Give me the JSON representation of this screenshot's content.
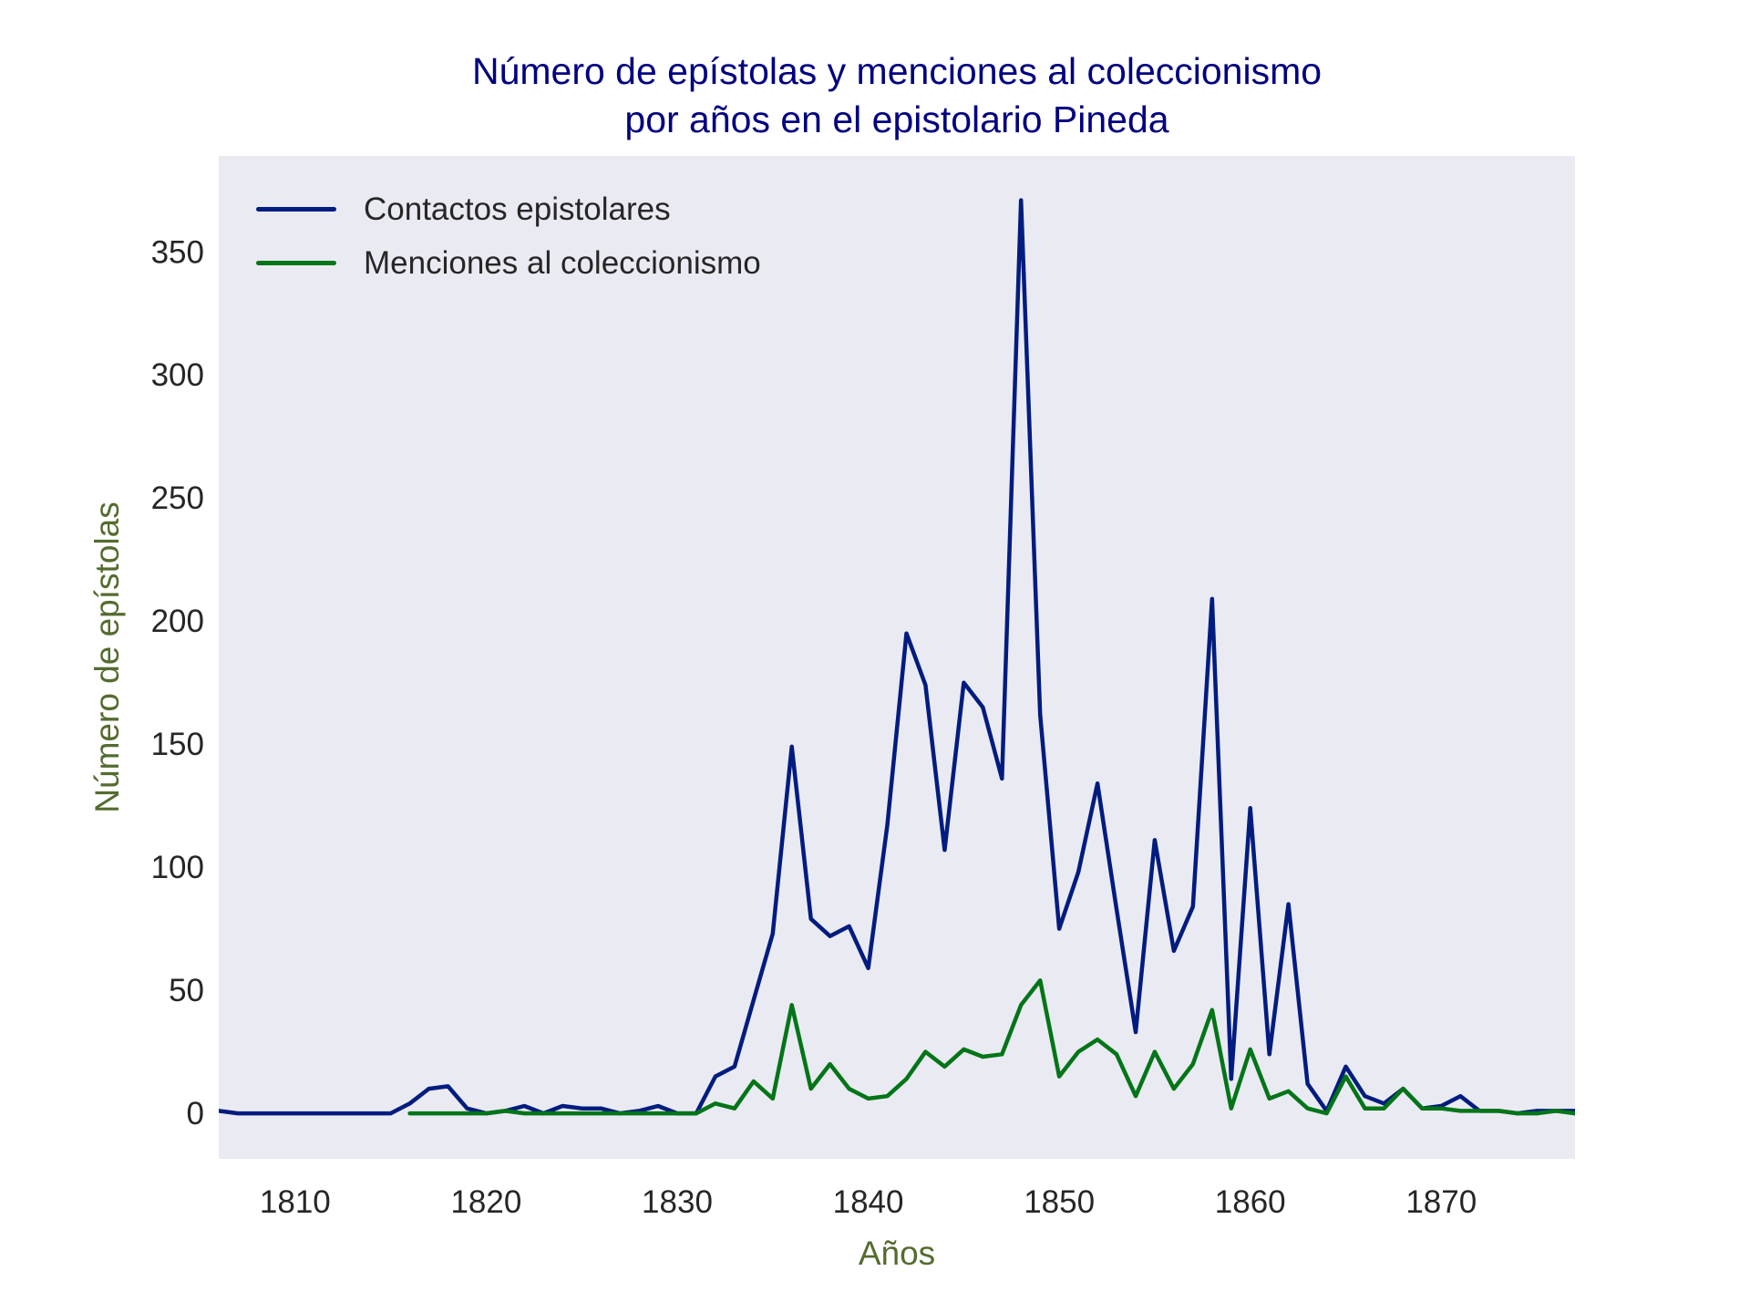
{
  "title": {
    "line1": "Número de epístolas y menciones al coleccionismo",
    "line2": "por años en el epistolario Pineda",
    "color": "#000080"
  },
  "axes": {
    "xlabel": "Años",
    "ylabel": "Número de epístolas",
    "label_color": "#556b2f",
    "background": "#eaeaf2",
    "tick_color": "#262626"
  },
  "legend": {
    "items": [
      {
        "label": "Contactos epistolares",
        "color": "#001c7f"
      },
      {
        "label": "Menciones al coleccionismo",
        "color": "#017517"
      }
    ]
  },
  "chart_data": {
    "type": "line",
    "title": "Número de epístolas y menciones al coleccionismo por años en el epistolario Pineda",
    "xlabel": "Años",
    "ylabel": "Número de epístolas",
    "xlim": [
      1806,
      1877
    ],
    "ylim": [
      -18.5,
      389
    ],
    "xticks": [
      1810,
      1820,
      1830,
      1840,
      1850,
      1860,
      1870
    ],
    "yticks": [
      0,
      50,
      100,
      150,
      200,
      250,
      300,
      350
    ],
    "grid": false,
    "legend_position": "upper left",
    "series": [
      {
        "name": "Contactos epistolares",
        "color": "#001c7f",
        "x": [
          1806,
          1807,
          1808,
          1809,
          1810,
          1811,
          1812,
          1813,
          1814,
          1815,
          1816,
          1817,
          1818,
          1819,
          1820,
          1821,
          1822,
          1823,
          1824,
          1825,
          1826,
          1827,
          1828,
          1829,
          1830,
          1831,
          1832,
          1833,
          1834,
          1835,
          1836,
          1837,
          1838,
          1839,
          1840,
          1841,
          1842,
          1843,
          1844,
          1845,
          1846,
          1847,
          1848,
          1849,
          1850,
          1851,
          1852,
          1853,
          1854,
          1855,
          1856,
          1857,
          1858,
          1859,
          1860,
          1861,
          1862,
          1863,
          1864,
          1865,
          1866,
          1867,
          1868,
          1869,
          1870,
          1871,
          1872,
          1873,
          1874,
          1875,
          1876,
          1877
        ],
        "values": [
          1,
          0,
          0,
          0,
          0,
          0,
          0,
          0,
          0,
          0,
          4,
          10,
          11,
          2,
          0,
          1,
          3,
          0,
          3,
          2,
          2,
          0,
          1,
          3,
          0,
          0,
          15,
          19,
          46,
          73,
          149,
          79,
          72,
          76,
          59,
          117,
          195,
          174,
          107,
          175,
          165,
          136,
          371,
          162,
          75,
          98,
          134,
          83,
          33,
          111,
          66,
          84,
          209,
          14,
          124,
          24,
          85,
          12,
          1,
          19,
          7,
          4,
          10,
          2,
          3,
          7,
          1,
          1,
          0,
          1,
          1,
          1
        ]
      },
      {
        "name": "Menciones al coleccionismo",
        "color": "#017517",
        "x": [
          1816,
          1817,
          1818,
          1819,
          1820,
          1821,
          1822,
          1823,
          1824,
          1825,
          1826,
          1827,
          1828,
          1829,
          1830,
          1831,
          1832,
          1833,
          1834,
          1835,
          1836,
          1837,
          1838,
          1839,
          1840,
          1841,
          1842,
          1843,
          1844,
          1845,
          1846,
          1847,
          1848,
          1849,
          1850,
          1851,
          1852,
          1853,
          1854,
          1855,
          1856,
          1857,
          1858,
          1859,
          1860,
          1861,
          1862,
          1863,
          1864,
          1865,
          1866,
          1867,
          1868,
          1869,
          1870,
          1871,
          1872,
          1873,
          1874,
          1875,
          1876,
          1877
        ],
        "values": [
          0,
          0,
          0,
          0,
          0,
          1,
          0,
          0,
          0,
          0,
          0,
          0,
          0,
          0,
          0,
          0,
          4,
          2,
          13,
          6,
          44,
          10,
          20,
          10,
          6,
          7,
          14,
          25,
          19,
          26,
          23,
          24,
          44,
          54,
          15,
          25,
          30,
          24,
          7,
          25,
          10,
          20,
          42,
          2,
          26,
          6,
          9,
          2,
          0,
          15,
          2,
          2,
          10,
          2,
          2,
          1,
          1,
          1,
          0,
          0,
          1,
          0
        ]
      }
    ]
  }
}
